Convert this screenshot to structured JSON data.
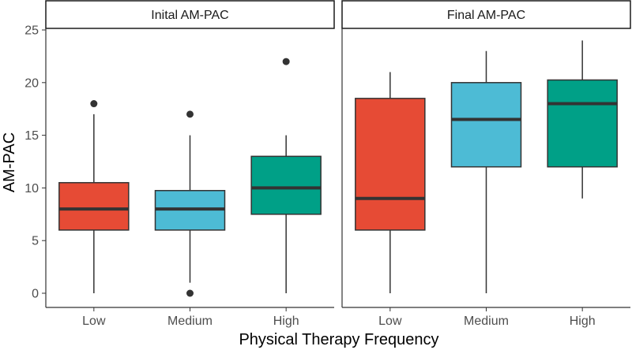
{
  "chart_data": {
    "type": "boxplot",
    "xlabel": "Physical Therapy Frequency",
    "ylabel": "AM-PAC",
    "ylim": [
      0,
      25
    ],
    "yticks": [
      0,
      5,
      10,
      15,
      20,
      25
    ],
    "grid": false,
    "colors": {
      "Low": "#e64b35",
      "Medium": "#4dbbd5",
      "High": "#00a087"
    },
    "panels": [
      {
        "title": "Inital AM-PAC",
        "boxes": [
          {
            "category": "Low",
            "min": 0,
            "q1": 6,
            "median": 8,
            "q3": 10.5,
            "max": 17,
            "outliers": [
              18
            ]
          },
          {
            "category": "Medium",
            "min": 1,
            "q1": 6,
            "median": 8,
            "q3": 9.75,
            "max": 15,
            "outliers": [
              17,
              0
            ]
          },
          {
            "category": "High",
            "min": 0,
            "q1": 7.5,
            "median": 10,
            "q3": 13,
            "max": 15,
            "outliers": [
              22
            ]
          }
        ]
      },
      {
        "title": "Final AM-PAC",
        "boxes": [
          {
            "category": "Low",
            "min": 0,
            "q1": 6,
            "median": 9,
            "q3": 18.5,
            "max": 21,
            "outliers": []
          },
          {
            "category": "Medium",
            "min": 0,
            "q1": 12,
            "median": 16.5,
            "q3": 20,
            "max": 23,
            "outliers": []
          },
          {
            "category": "High",
            "min": 9,
            "q1": 12,
            "median": 18,
            "q3": 20.25,
            "max": 24,
            "outliers": []
          }
        ]
      }
    ]
  }
}
